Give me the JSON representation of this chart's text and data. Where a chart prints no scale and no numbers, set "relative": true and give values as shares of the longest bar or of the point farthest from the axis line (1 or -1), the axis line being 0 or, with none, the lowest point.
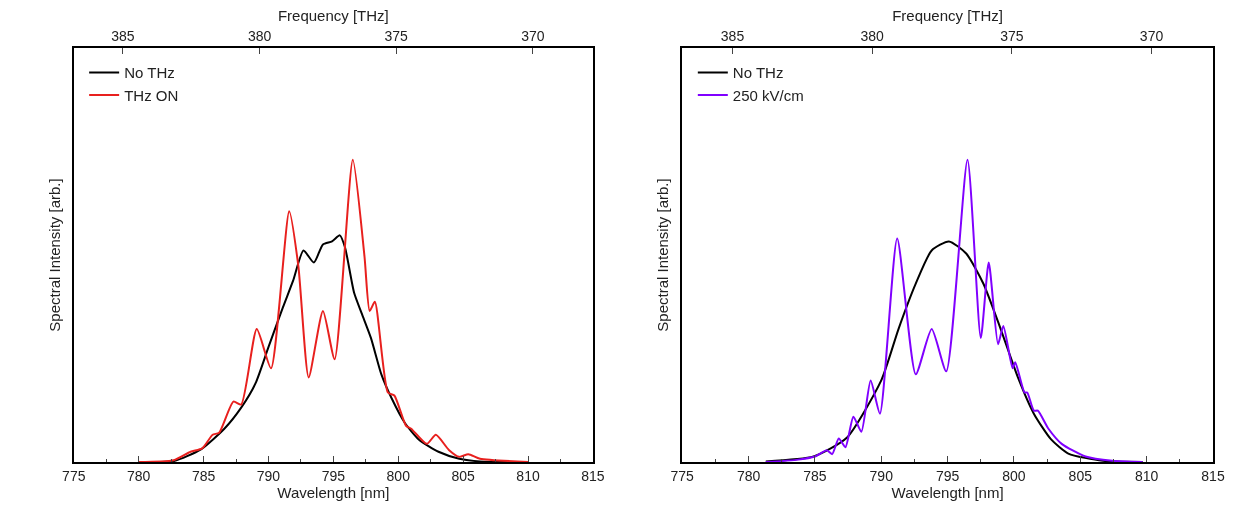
{
  "chart_data": [
    {
      "type": "line",
      "xlabel": "Wavelength [nm]",
      "ylabel": "Spectral Intensity [arb.]",
      "x2label": "Frequency [THz]",
      "xlim": [
        775,
        815
      ],
      "xticks": [
        775,
        780,
        785,
        790,
        795,
        800,
        805,
        810,
        815
      ],
      "x2lim": [
        386.8,
        367.8
      ],
      "x2ticks": [
        385,
        380,
        375,
        370
      ],
      "relative": true,
      "legend": "top left",
      "series": [
        {
          "name": "No THz",
          "color": "#000000",
          "x": [
            780,
            782.7,
            784.8,
            786.6,
            787.9,
            789.0,
            790.0,
            791.1,
            791.9,
            792.7,
            793.5,
            794.2,
            794.9,
            795.5,
            795.9,
            796.6,
            797.2,
            797.9,
            798.7,
            799.5,
            800.5,
            801.6,
            803.1,
            804.7,
            806.3,
            810
          ],
          "values": [
            0,
            0.003,
            0.042,
            0.11,
            0.18,
            0.26,
            0.38,
            0.51,
            0.6,
            0.7,
            0.66,
            0.72,
            0.73,
            0.75,
            0.71,
            0.56,
            0.49,
            0.41,
            0.29,
            0.21,
            0.13,
            0.074,
            0.034,
            0.011,
            0.002,
            0
          ]
        },
        {
          "name": "THz ON",
          "color": "#e8201e",
          "x": [
            780,
            782.7,
            784.0,
            784.9,
            785.7,
            786.2,
            787.3,
            787.9,
            789.1,
            790.2,
            791.6,
            792.3,
            793.1,
            794.2,
            795.1,
            796.5,
            797.4,
            797.8,
            798.2,
            799.2,
            799.7,
            800.6,
            801.0,
            802.2,
            802.9,
            803.9,
            804.7,
            805.4,
            806.3,
            810
          ],
          "values": [
            0,
            0.006,
            0.034,
            0.045,
            0.09,
            0.097,
            0.2,
            0.19,
            0.44,
            0.31,
            0.83,
            0.65,
            0.28,
            0.5,
            0.34,
            1.0,
            0.68,
            0.5,
            0.53,
            0.23,
            0.22,
            0.12,
            0.11,
            0.06,
            0.09,
            0.04,
            0.017,
            0.026,
            0.011,
            0
          ]
        }
      ]
    },
    {
      "type": "line",
      "xlabel": "Wavelength [nm]",
      "ylabel": "Spectral Intensity [arb.]",
      "x2label": "Frequency [THz]",
      "xlim": [
        775,
        815
      ],
      "xticks": [
        775,
        780,
        785,
        790,
        795,
        800,
        805,
        810,
        815
      ],
      "x2lim": [
        386.8,
        367.8
      ],
      "x2ticks": [
        385,
        380,
        375,
        370
      ],
      "relative": true,
      "legend": "top left",
      "series": [
        {
          "name": "No THz",
          "color": "#000000",
          "x": [
            781.3,
            784.9,
            787.4,
            790,
            791.3,
            792.6,
            793.8,
            795.1,
            796.4,
            797.7,
            799.0,
            800.3,
            801.5,
            802.8,
            804.1,
            806.7,
            809.7
          ],
          "values": [
            0.002,
            0.018,
            0.08,
            0.27,
            0.44,
            0.59,
            0.7,
            0.73,
            0.69,
            0.59,
            0.44,
            0.28,
            0.16,
            0.075,
            0.028,
            0.004,
            0
          ]
        },
        {
          "name": "250 kV/cm",
          "color": "#8000ff",
          "x": [
            781.3,
            783.6,
            785,
            785.9,
            786.3,
            786.8,
            787.3,
            787.9,
            788.5,
            789.2,
            789.9,
            791.2,
            792.6,
            793.8,
            794.9,
            796.5,
            797.5,
            798.1,
            798.8,
            799.2,
            799.9,
            800.1,
            800.8,
            801.0,
            801.5,
            801.8,
            802.6,
            803.6,
            805.4,
            807.4,
            809.7
          ],
          "values": [
            0,
            0.007,
            0.018,
            0.039,
            0.026,
            0.078,
            0.049,
            0.15,
            0.1,
            0.27,
            0.16,
            0.74,
            0.29,
            0.44,
            0.3,
            1.0,
            0.41,
            0.66,
            0.39,
            0.45,
            0.31,
            0.33,
            0.23,
            0.23,
            0.17,
            0.17,
            0.11,
            0.06,
            0.018,
            0.004,
            0
          ]
        }
      ]
    }
  ]
}
